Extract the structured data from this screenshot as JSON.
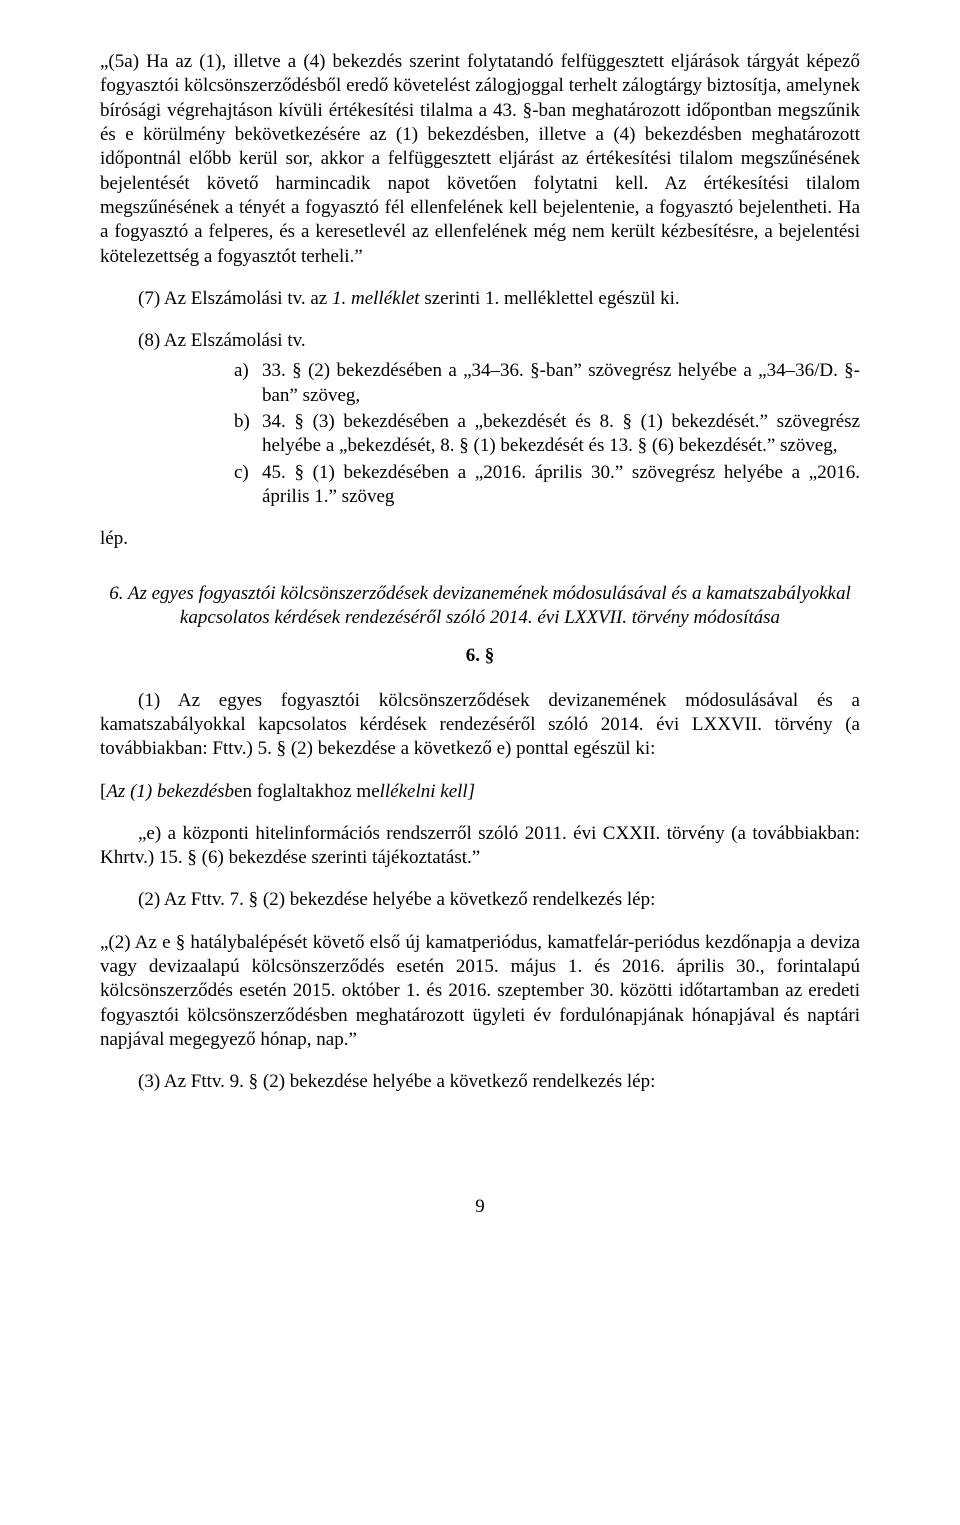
{
  "p1": "„(5a) Ha az (1), illetve a (4) bekezdés szerint folytatandó felfüggesztett eljárások tárgyát képező fogyasztói kölcsönszerződésből eredő követelést zálogjoggal terhelt zálogtárgy biztosítja, amelynek bírósági végrehajtáson kívüli értékesítési tilalma a 43. §-ban meghatározott időpontban megszűnik és e körülmény bekövetkezésére az (1) bekezdésben, illetve a (4) bekezdésben meghatározott időpontnál előbb kerül sor, akkor a felfüggesztett eljárást az értékesítési tilalom megszűnésének bejelentését követő harmincadik napot követően folytatni kell. Az értékesítési tilalom megszűnésének a tényét a fogyasztó fél ellenfelének kell bejelentenie, a fogyasztó bejelentheti. Ha a fogyasztó a felperes, és a keresetlevél az ellenfelének még nem került kézbesítésre, a bejelentési kötelezettség a fogyasztót terheli.”",
  "p2_prefix": "(7) Az Elszámolási tv. az ",
  "p2_italic": "1. melléklet",
  "p2_suffix": " szerinti 1. melléklettel egészül ki.",
  "p3": "(8) Az Elszámolási tv.",
  "list": {
    "a": {
      "label": "a)",
      "text": "33. § (2) bekezdésében a „34–36. §-ban” szövegrész helyébe a „34–36/D. §-ban” szöveg,"
    },
    "b": {
      "label": "b)",
      "text": "34. § (3) bekezdésében a „bekezdését és 8. § (1) bekezdését.” szövegrész helyébe a „bekezdését, 8. § (1) bekezdését és 13. § (6) bekezdését.” szöveg,"
    },
    "c": {
      "label": "c)",
      "text": "45. § (1) bekezdésében a „2016. április 30.” szövegrész helyébe a „2016. április 1.” szöveg"
    }
  },
  "lep": "lép.",
  "sectionTitle": "6. Az egyes fogyasztói kölcsönszerződések devizanemének módosulásával és a kamatszabályokkal kapcsolatos kérdések rendezéséről szóló 2014. évi LXXVII. törvény módosítása",
  "sectionNum": "6. §",
  "p4": "(1) Az egyes fogyasztói kölcsönszerződések devizanemének módosulásával és a kamatszabályokkal kapcsolatos kérdések rendezéséről szóló 2014. évi LXXVII. törvény (a továbbiakban: Fttv.) 5. § (2) bekezdése a következő e) ponttal egészül ki:",
  "p5_open": "[",
  "p5_i1": "Az (1) bekezdésb",
  "p5_mid": "en foglaltakhoz me",
  "p5_i2": "llékelni kell]",
  "p6": "„e) a központi hitelinformációs rendszerről szóló 2011. évi CXXII. törvény (a továbbiakban: Khrtv.) 15. § (6) bekezdése szerinti tájékoztatást.”",
  "p7": "(2) Az Fttv. 7. § (2) bekezdése helyébe a következő rendelkezés lép:",
  "p8": "„(2) Az e § hatálybalépését követő első új kamatperiódus, kamatfelár-periódus kezdőnapja a deviza vagy devizaalapú kölcsönszerződés esetén 2015. május 1. és 2016. április 30., forintalapú kölcsönszerződés esetén 2015. október 1. és 2016. szeptember 30. közötti időtartamban az eredeti fogyasztói kölcsönszerződésben meghatározott ügyleti év fordulónapjának hónapjával és naptári napjával megegyező hónap, nap.”",
  "p9": "(3) Az Fttv. 9. § (2) bekezdése helyébe a következő rendelkezés lép:",
  "pageNum": "9"
}
